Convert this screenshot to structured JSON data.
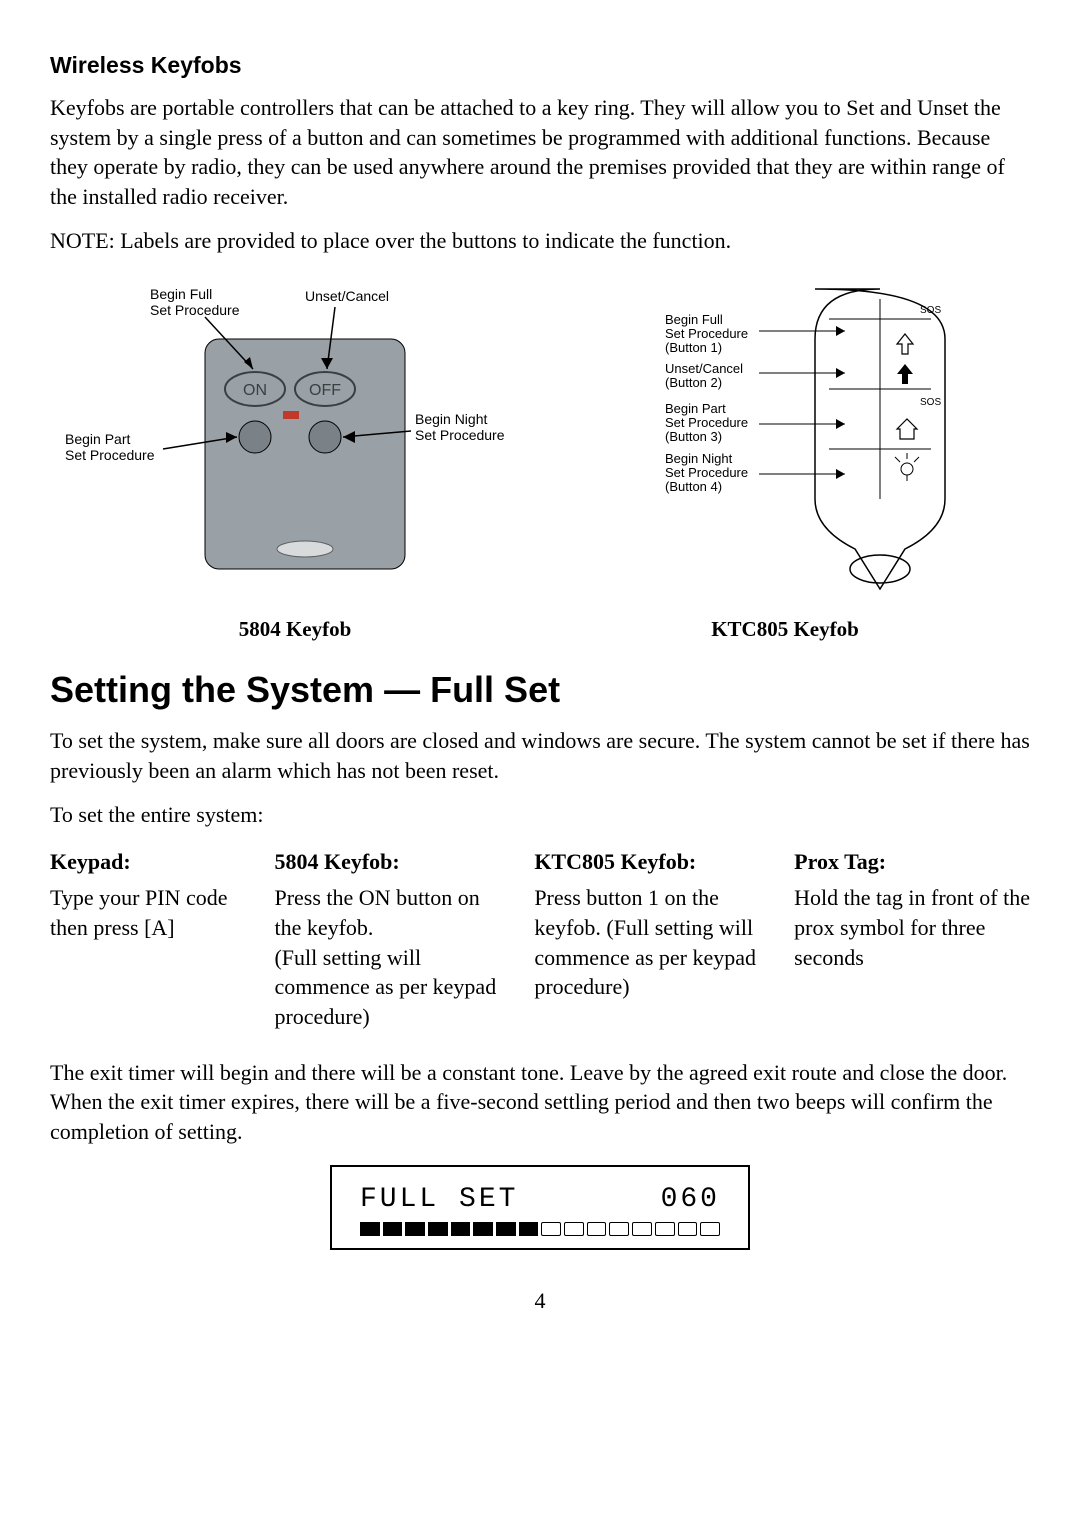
{
  "section1": {
    "heading": "Wireless Keyfobs",
    "para1": "Keyfobs are portable controllers that can be attached to a key ring. They will allow you to Set and Unset the system by a single press of a button and can sometimes be programmed with additional functions. Because they operate by radio, they can be used anywhere around the premises provided that they are within range of the installed radio receiver.",
    "note": "NOTE:  Labels are provided to place over the buttons to indicate the function."
  },
  "diagram5804": {
    "labels": {
      "beginFull1": "Begin Full",
      "beginFull2": "Set Procedure",
      "unset": "Unset/Cancel",
      "on": "ON",
      "off": "OFF",
      "beginPart1": "Begin Part",
      "beginPart2": "Set Procedure",
      "beginNight1": "Begin Night",
      "beginNight2": "Set Procedure"
    },
    "caption": "5804 Keyfob"
  },
  "diagramKTC": {
    "labels": {
      "b1a": "Begin Full",
      "b1b": "Set Procedure",
      "b1c": "(Button 1)",
      "b2a": "Unset/Cancel",
      "b2b": "(Button 2)",
      "b3a": "Begin Part",
      "b3b": "Set Procedure",
      "b3c": "(Button 3)",
      "b4a": "Begin Night",
      "b4b": "Set Procedure",
      "b4c": "(Button 4)",
      "sos": "SOS"
    },
    "caption": "KTC805 Keyfob"
  },
  "section2": {
    "title": "Setting the System — Full Set",
    "para1": "To set the system, make sure all doors are closed and windows are secure. The system cannot be set if there has previously been an alarm which has not been reset.",
    "para2": "To set the entire system:",
    "methods": {
      "keypad": {
        "title": "Keypad:",
        "body": "Type your PIN code\nthen press [A]"
      },
      "k5804": {
        "title": "5804 Keyfob:",
        "body": "Press the ON button on the keyfob.\n(Full setting will commence as per keypad procedure)"
      },
      "ktc805": {
        "title": "KTC805 Keyfob:",
        "body": "Press button 1 on the keyfob. (Full setting will commence as per keypad procedure)"
      },
      "prox": {
        "title": "Prox Tag:",
        "body": "Hold the tag in front of the prox symbol for three  seconds"
      }
    },
    "para3": "The exit timer will begin and there will be a constant tone. Leave by the agreed exit route and close the door. When the exit timer expires, there will be a five-second settling period and then two beeps will confirm the completion of setting."
  },
  "lcd": {
    "line1left": "FULL  SET",
    "line1right": "060",
    "filled": 8,
    "empty": 8
  },
  "pageNumber": "4"
}
